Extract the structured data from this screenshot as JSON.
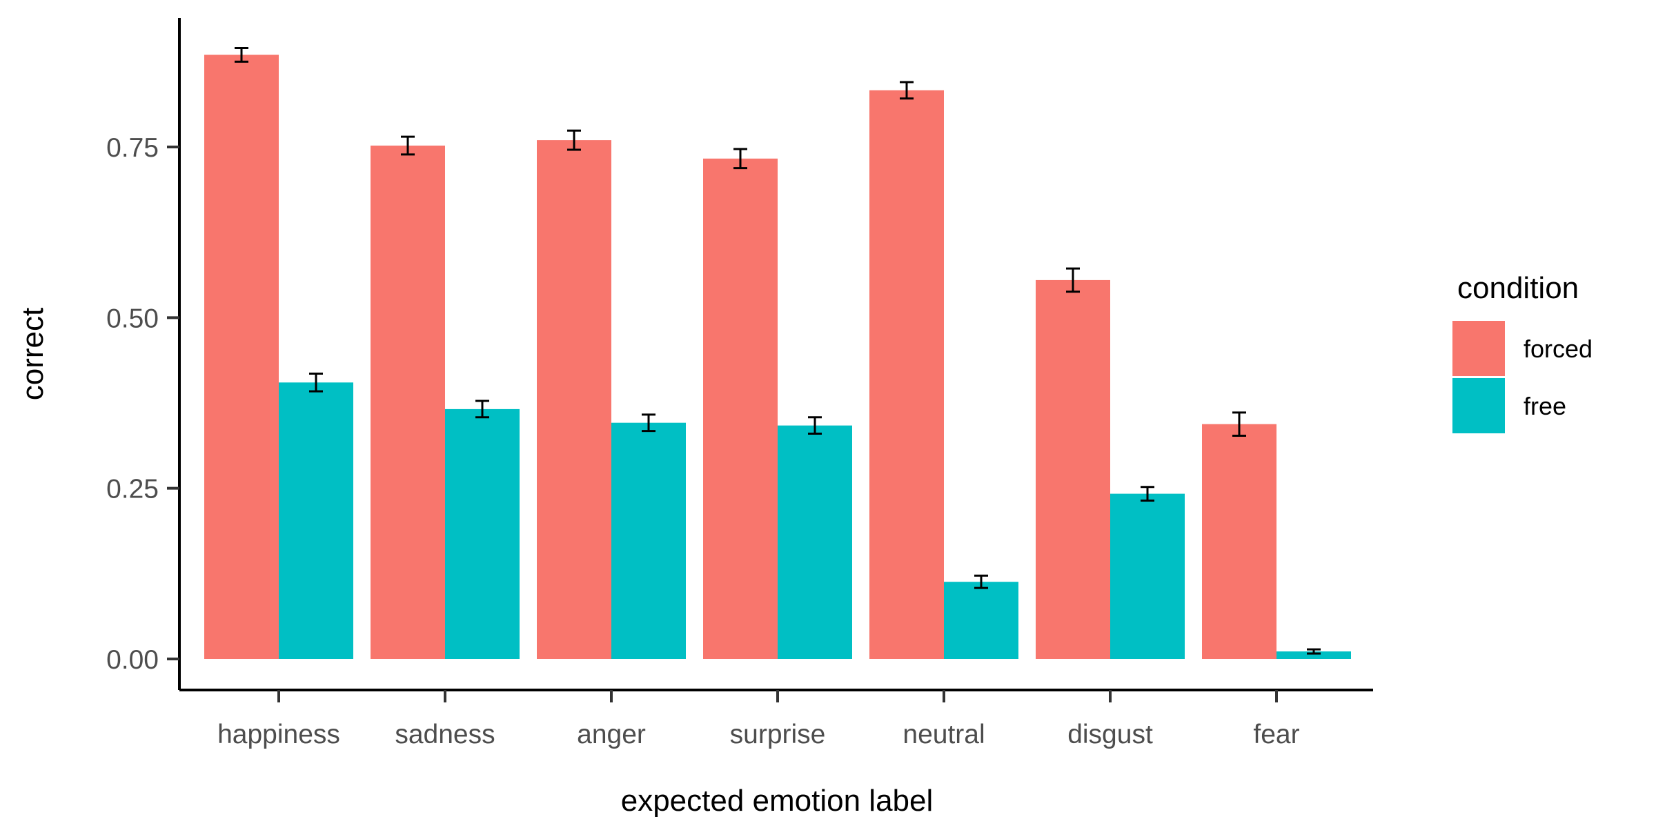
{
  "chart_data": {
    "type": "bar",
    "title": "",
    "xlabel": "expected emotion label",
    "ylabel": "correct",
    "ylim": [
      -0.04,
      0.94
    ],
    "yticks": [
      0.0,
      0.25,
      0.5,
      0.75
    ],
    "ytick_labels": [
      "0.00",
      "0.25",
      "0.50",
      "0.75"
    ],
    "categories": [
      "happiness",
      "sadness",
      "anger",
      "surprise",
      "neutral",
      "disgust",
      "fear"
    ],
    "grid": false,
    "legend": {
      "title": "condition",
      "position": "right"
    },
    "series": [
      {
        "name": "forced",
        "color": "#F8766D",
        "values": [
          0.885,
          0.752,
          0.76,
          0.733,
          0.833,
          0.555,
          0.344
        ],
        "error": [
          0.01,
          0.013,
          0.014,
          0.014,
          0.012,
          0.017,
          0.017
        ]
      },
      {
        "name": "free",
        "color": "#00BFC4",
        "values": [
          0.405,
          0.366,
          0.346,
          0.342,
          0.113,
          0.242,
          0.011
        ],
        "error": [
          0.013,
          0.012,
          0.012,
          0.012,
          0.009,
          0.01,
          0.003
        ]
      }
    ]
  }
}
